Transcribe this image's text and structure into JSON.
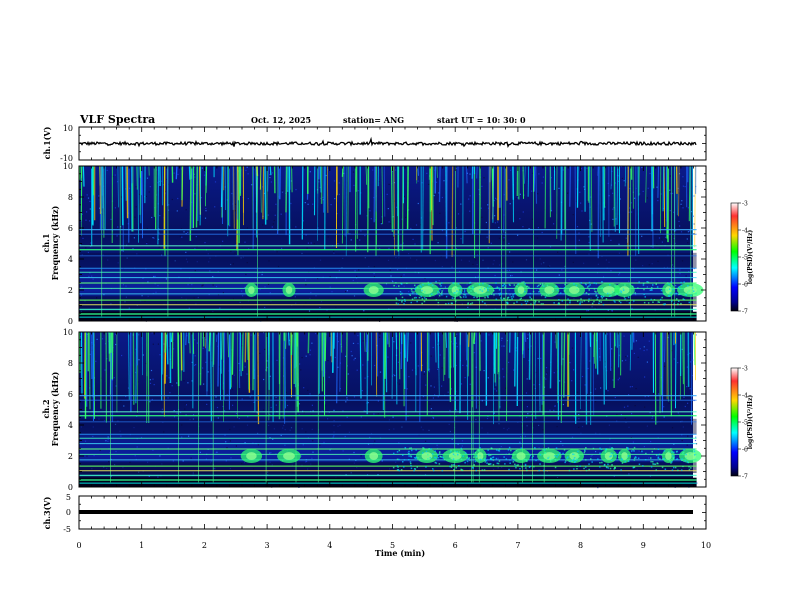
{
  "header": {
    "title": "VLF Spectra",
    "date": "Oct. 12, 2025",
    "station": "station= ANG",
    "start": "start  UT =   10: 30: 0"
  },
  "colorbar": {
    "label": "log(PSD)(V²/Hz)",
    "ticks": [
      "-3",
      "-4",
      "-5",
      "-6",
      "-7"
    ],
    "colors": [
      "#ffffff",
      "#ff0000",
      "#ffd700",
      "#00ff00",
      "#00ffff",
      "#0000ff",
      "#00008b",
      "#000000"
    ]
  },
  "chart_data": [
    {
      "type": "line",
      "name": "ch1-waveform",
      "ylabel": "ch.1(V)",
      "ylim": [
        -10,
        10
      ],
      "ytick_labels": [
        "10",
        "-10"
      ],
      "baseline_value": 0,
      "grid": false
    },
    {
      "type": "heatmap",
      "name": "ch1-spectrogram",
      "ylabel": "ch.1\nFrequency (kHz)",
      "ylim": [
        0,
        10
      ],
      "ytick_labels": [
        "10",
        "8",
        "6",
        "4",
        "2",
        "0"
      ],
      "xlim": [
        0,
        10
      ],
      "color_range": [
        -7,
        -3
      ],
      "description_of_content": "Broadband sferic streaks above 4 kHz, strong interference lines near 0.5-3 kHz and 4.5 kHz, chorus-like blobs near 2 kHz after 2.5 min"
    },
    {
      "type": "heatmap",
      "name": "ch2-spectrogram",
      "ylabel": "ch.2\nFrequency (kHz)",
      "ylim": [
        0,
        10
      ],
      "ytick_labels": [
        "10",
        "8",
        "6",
        "4",
        "2",
        "0"
      ],
      "xlim": [
        0,
        10
      ],
      "color_range": [
        -7,
        -3
      ]
    },
    {
      "type": "line",
      "name": "ch3-waveform",
      "ylabel": "ch.3(V)",
      "ylim": [
        -5,
        5
      ],
      "ytick_labels": [
        "5",
        "-5"
      ],
      "baseline_value": 0
    }
  ],
  "xaxis": {
    "label": "Time  (min)",
    "tick_labels": [
      "0",
      "1",
      "2",
      "3",
      "4",
      "5",
      "6",
      "7",
      "8",
      "9",
      "10"
    ],
    "range": [
      0,
      10
    ],
    "data_end": 9.85
  },
  "chorus_blobs": [
    2.75,
    3.35,
    4.7,
    5.55,
    6.0,
    6.4,
    7.05,
    7.5,
    7.9,
    8.45,
    8.7,
    9.4,
    9.75
  ]
}
